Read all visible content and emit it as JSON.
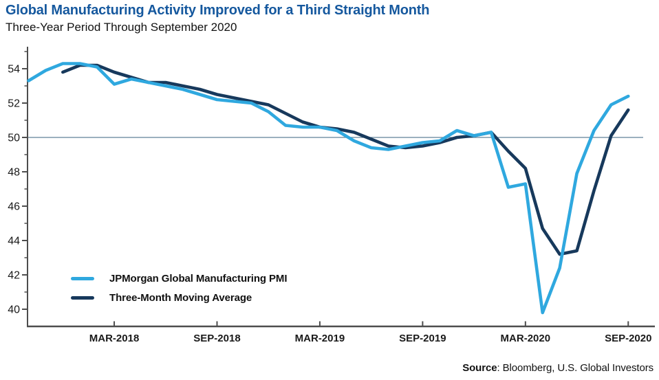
{
  "chart_data": {
    "type": "line",
    "title": "Global Manufacturing Activity Improved for a Third Straight Month",
    "subtitle": "Three-Year Period Through September 2020",
    "source_bold": "Source",
    "source_text": ": Bloomberg, U.S. Global Investors",
    "months": [
      "Oct-2017",
      "Nov-2017",
      "Dec-2017",
      "Jan-2018",
      "Feb-2018",
      "Mar-2018",
      "Apr-2018",
      "May-2018",
      "Jun-2018",
      "Jul-2018",
      "Aug-2018",
      "Sep-2018",
      "Oct-2018",
      "Nov-2018",
      "Dec-2018",
      "Jan-2019",
      "Feb-2019",
      "Mar-2019",
      "Apr-2019",
      "May-2019",
      "Jun-2019",
      "Jul-2019",
      "Aug-2019",
      "Sep-2019",
      "Oct-2019",
      "Nov-2019",
      "Dec-2019",
      "Jan-2020",
      "Feb-2020",
      "Mar-2020",
      "Apr-2020",
      "May-2020",
      "Jun-2020",
      "Jul-2020",
      "Aug-2020",
      "Sep-2020"
    ],
    "series": [
      {
        "name": "JPMorgan Global Manufacturing PMI",
        "color": "#2FA8DF",
        "start_index": 0,
        "values": [
          53.3,
          53.9,
          54.3,
          54.3,
          54.1,
          53.1,
          53.4,
          53.2,
          53.0,
          52.8,
          52.5,
          52.2,
          52.1,
          52.0,
          51.5,
          50.7,
          50.6,
          50.6,
          50.4,
          49.8,
          49.4,
          49.3,
          49.5,
          49.7,
          49.8,
          50.4,
          50.1,
          50.3,
          47.1,
          47.3,
          39.8,
          42.4,
          47.9,
          50.4,
          51.9,
          52.4
        ]
      },
      {
        "name": "Three-Month Moving Average",
        "color": "#17395C",
        "start_index": 2,
        "values": [
          53.8,
          54.2,
          54.2,
          53.8,
          53.5,
          53.2,
          53.2,
          53.0,
          52.8,
          52.5,
          52.3,
          52.1,
          51.9,
          51.4,
          50.9,
          50.6,
          50.5,
          50.3,
          49.9,
          49.5,
          49.4,
          49.5,
          49.7,
          50.0,
          50.1,
          50.3,
          49.2,
          48.2,
          44.7,
          43.2,
          43.4,
          46.9,
          50.1,
          51.6
        ]
      }
    ],
    "y_ticks": [
      54,
      52,
      50,
      48,
      46,
      44,
      42,
      40
    ],
    "y_minor_ticks": [
      55,
      53,
      51,
      49,
      47,
      45,
      43,
      41
    ],
    "x_ticks": [
      {
        "label": "MAR-2018",
        "month_index": 5
      },
      {
        "label": "SEP-2018",
        "month_index": 11
      },
      {
        "label": "MAR-2019",
        "month_index": 17
      },
      {
        "label": "SEP-2019",
        "month_index": 23
      },
      {
        "label": "MAR-2020",
        "month_index": 29
      },
      {
        "label": "SEP-2020",
        "month_index": 35
      }
    ],
    "reference_line": 50,
    "ylim": [
      39.0,
      55.3
    ],
    "grid": "off",
    "legend_position": "inside-bottom-left",
    "colors": {
      "title": "#15589E",
      "axis": "#4D4D4D",
      "reference_line": "#5F8096",
      "tick_label": "#1A1A1A"
    }
  }
}
